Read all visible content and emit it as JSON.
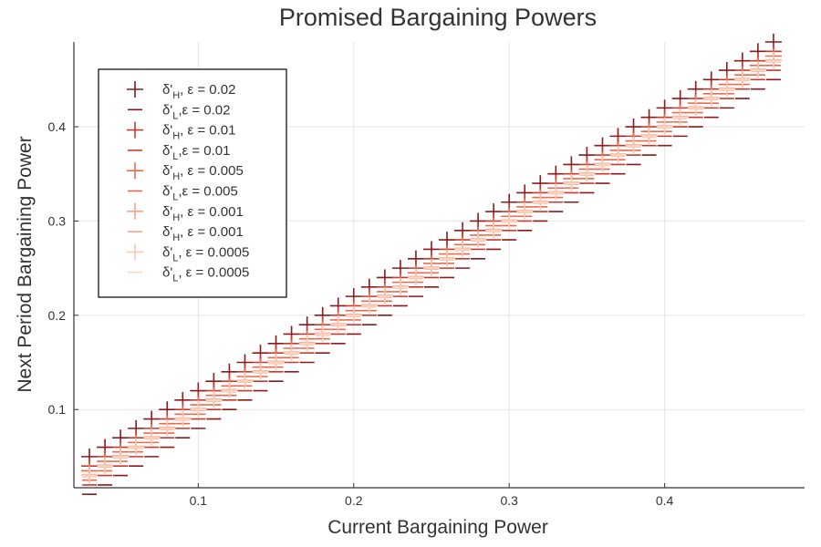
{
  "chart_data": {
    "type": "scatter",
    "title": "Promised Bargaining Powers",
    "xlabel": "Current Bargaining Power",
    "ylabel": "Next Period Bargaining Power",
    "xlim": [
      0.02,
      0.49
    ],
    "ylim": [
      0.017,
      0.49
    ],
    "xticks": [
      0.1,
      0.2,
      0.3,
      0.4
    ],
    "yticks": [
      0.1,
      0.2,
      0.3,
      0.4
    ],
    "xtick_labels": [
      "0.1",
      "0.2",
      "0.3",
      "0.4"
    ],
    "ytick_labels": [
      "0.1",
      "0.2",
      "0.3",
      "0.4"
    ],
    "grid": true,
    "legend_position": "top-left",
    "x": [
      0.03,
      0.04,
      0.05,
      0.06,
      0.07,
      0.08,
      0.09,
      0.1,
      0.11,
      0.12,
      0.13,
      0.14,
      0.15,
      0.16,
      0.17,
      0.18,
      0.19,
      0.2,
      0.21,
      0.22,
      0.23,
      0.24,
      0.25,
      0.26,
      0.27,
      0.28,
      0.29,
      0.3,
      0.31,
      0.32,
      0.33,
      0.34,
      0.35,
      0.36,
      0.37,
      0.38,
      0.39,
      0.4,
      0.41,
      0.42,
      0.43,
      0.44,
      0.45,
      0.46,
      0.47
    ],
    "series": [
      {
        "name": "δ'H, ε = 0.02",
        "sub": "H",
        "sep": ", ",
        "eps": "0.02",
        "marker": "plus",
        "color": "#8b1a1a",
        "offset": 0.02
      },
      {
        "name": "δ'L,ε = 0.02",
        "sub": "L",
        "sep": ",",
        "eps": "0.02",
        "marker": "dash",
        "color": "#8b1a1a",
        "offset": -0.02
      },
      {
        "name": "δ'H, ε = 0.01",
        "sub": "H",
        "sep": ", ",
        "eps": "0.01",
        "marker": "plus",
        "color": "#c73a30",
        "offset": 0.01
      },
      {
        "name": "δ'L,ε = 0.01",
        "sub": "L",
        "sep": ",",
        "eps": "0.01",
        "marker": "dash",
        "color": "#c73a30",
        "offset": -0.01
      },
      {
        "name": "δ'H, ε = 0.005",
        "sub": "H",
        "sep": ", ",
        "eps": "0.005",
        "marker": "plus",
        "color": "#eb6a4f",
        "offset": 0.005
      },
      {
        "name": "δ'L,ε = 0.005",
        "sub": "L",
        "sep": ",",
        "eps": "0.005",
        "marker": "dash",
        "color": "#eb6a4f",
        "offset": -0.005
      },
      {
        "name": "δ'H, ε = 0.001",
        "sub": "H",
        "sep": ", ",
        "eps": "0.001",
        "marker": "plus",
        "color": "#f8a283",
        "offset": 0.001
      },
      {
        "name": "δ'H, ε = 0.001",
        "sub": "H",
        "sep": ", ",
        "eps": "0.001",
        "marker": "dash",
        "color": "#f8a283",
        "offset": -0.001
      },
      {
        "name": "δ'L, ε = 0.0005",
        "sub": "L",
        "sep": ", ",
        "eps": "0.0005",
        "marker": "plus",
        "color": "#fcc8b3",
        "offset": 0.0005
      },
      {
        "name": "δ'L, ε = 0.0005",
        "sub": "L",
        "sep": ", ",
        "eps": "0.0005",
        "marker": "dash",
        "color": "#fdd7c6",
        "offset": -0.0005
      }
    ]
  }
}
